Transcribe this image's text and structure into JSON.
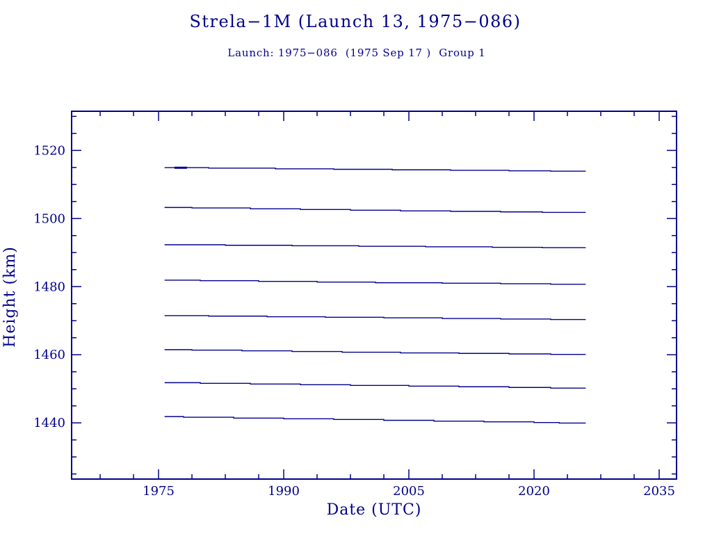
{
  "chart_data": {
    "type": "line",
    "title": "Strela−1M (Launch 13, 1975−086)",
    "subtitle": "Launch: 1975−086  (1975 Sep 17 )  Group 1",
    "xlabel": "Date (UTC)",
    "ylabel": "Height (km)",
    "accent_color": "#00008B",
    "grid": false,
    "legend": "none",
    "xlim": [
      1964.58,
      2037.08
    ],
    "ylim": [
      1423.5,
      1531.5
    ],
    "x_major_ticks": [
      1975,
      1990,
      2005,
      2020,
      2035
    ],
    "x_major_period_years": 15,
    "x_minor_offsets_years": [
      4,
      8,
      12
    ],
    "y_major_ticks": [
      1440,
      1460,
      1480,
      1500,
      1520
    ],
    "y_minor_step_km": 5,
    "series": [
      {
        "name": "line 1",
        "emphasis": [
          1976.9,
          1978.4,
          1514.9
        ],
        "points": [
          [
            1975.72,
            1514.95
          ],
          [
            1981,
            1514.8
          ],
          [
            1989,
            1514.6
          ],
          [
            1996,
            1514.45
          ],
          [
            2003,
            1514.3
          ],
          [
            2010,
            1514.15
          ],
          [
            2017,
            1514.0
          ],
          [
            2022,
            1513.9
          ],
          [
            2026.2,
            1513.9
          ]
        ]
      },
      {
        "name": "line 2",
        "points": [
          [
            1975.72,
            1503.25
          ],
          [
            1979,
            1503.1
          ],
          [
            1986,
            1502.85
          ],
          [
            1992,
            1502.65
          ],
          [
            1998,
            1502.45
          ],
          [
            2004,
            1502.25
          ],
          [
            2010,
            1502.1
          ],
          [
            2016,
            1501.95
          ],
          [
            2021,
            1501.8
          ],
          [
            2026.2,
            1501.8
          ]
        ]
      },
      {
        "name": "line 3",
        "points": [
          [
            1975.72,
            1492.3
          ],
          [
            1983,
            1492.15
          ],
          [
            1991,
            1492.0
          ],
          [
            1999,
            1491.85
          ],
          [
            2007,
            1491.7
          ],
          [
            2015,
            1491.55
          ],
          [
            2021,
            1491.45
          ],
          [
            2026.2,
            1491.45
          ]
        ]
      },
      {
        "name": "line 4",
        "points": [
          [
            1975.72,
            1481.9
          ],
          [
            1980,
            1481.75
          ],
          [
            1987,
            1481.55
          ],
          [
            1994,
            1481.35
          ],
          [
            2001,
            1481.15
          ],
          [
            2009,
            1481.0
          ],
          [
            2016,
            1480.85
          ],
          [
            2022,
            1480.7
          ],
          [
            2026.2,
            1480.7
          ]
        ]
      },
      {
        "name": "line 5",
        "points": [
          [
            1975.72,
            1471.5
          ],
          [
            1981,
            1471.35
          ],
          [
            1988,
            1471.15
          ],
          [
            1995,
            1471.0
          ],
          [
            2002,
            1470.85
          ],
          [
            2009,
            1470.65
          ],
          [
            2016,
            1470.5
          ],
          [
            2022,
            1470.35
          ],
          [
            2026.2,
            1470.35
          ]
        ]
      },
      {
        "name": "line 6",
        "points": [
          [
            1975.72,
            1461.5
          ],
          [
            1979,
            1461.35
          ],
          [
            1985,
            1461.15
          ],
          [
            1991,
            1460.95
          ],
          [
            1997,
            1460.75
          ],
          [
            2004,
            1460.55
          ],
          [
            2011,
            1460.4
          ],
          [
            2017,
            1460.25
          ],
          [
            2022,
            1460.1
          ],
          [
            2026.2,
            1460.1
          ]
        ]
      },
      {
        "name": "line 7",
        "points": [
          [
            1975.72,
            1451.8
          ],
          [
            1980,
            1451.6
          ],
          [
            1986,
            1451.4
          ],
          [
            1992,
            1451.2
          ],
          [
            1998,
            1451.0
          ],
          [
            2005,
            1450.8
          ],
          [
            2011,
            1450.6
          ],
          [
            2017,
            1450.4
          ],
          [
            2022,
            1450.2
          ],
          [
            2026.2,
            1450.2
          ]
        ]
      },
      {
        "name": "line 8",
        "points": [
          [
            1975.72,
            1441.85
          ],
          [
            1978,
            1441.65
          ],
          [
            1984,
            1441.4
          ],
          [
            1990,
            1441.2
          ],
          [
            1996,
            1441.0
          ],
          [
            2002,
            1440.75
          ],
          [
            2008,
            1440.5
          ],
          [
            2014,
            1440.3
          ],
          [
            2020,
            1440.1
          ],
          [
            2023,
            1439.95
          ],
          [
            2026.2,
            1439.95
          ]
        ]
      }
    ]
  }
}
